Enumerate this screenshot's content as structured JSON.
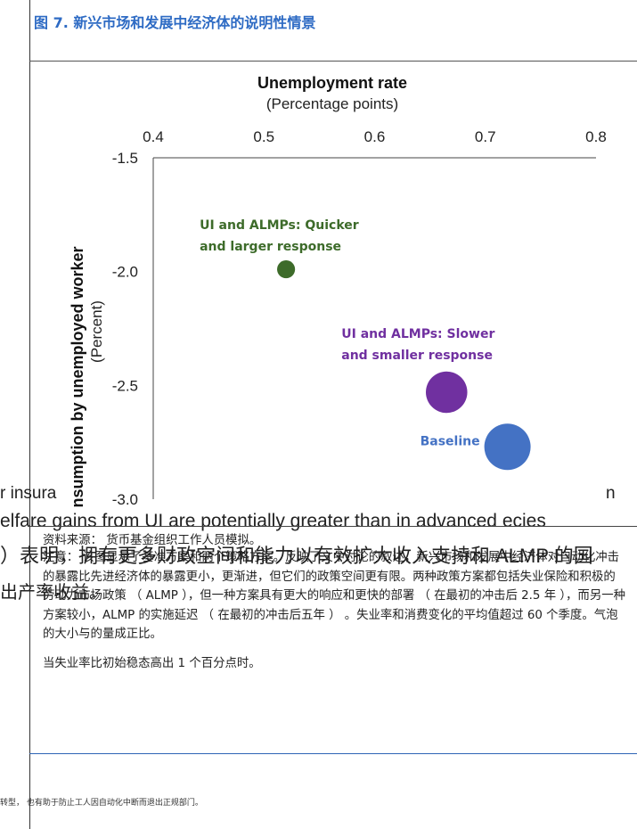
{
  "figure": {
    "title": "图 7. 新兴市场和发展中经济体的说明性情景"
  },
  "chart_data": {
    "type": "scatter",
    "title": "Unemployment rate",
    "subtitle": "(Percentage points)",
    "xlabel": "Unemployment rate",
    "ylabel": "Consumption by unemployed worker",
    "ylabel_sub": "(Percent)",
    "xlim": [
      0.4,
      0.8
    ],
    "ylim": [
      -3.0,
      -1.5
    ],
    "x_ticks": [
      "0.4",
      "0.5",
      "0.6",
      "0.7",
      "0.8"
    ],
    "y_ticks": [
      "-1.5",
      "-2.0",
      "-2.5",
      "-3.0"
    ],
    "x_axis_position": "top",
    "grid": false,
    "points": [
      {
        "label_line1": "UI and ALMPs: Quicker",
        "label_line2": "and larger response",
        "x": 0.52,
        "y": -1.99,
        "size": 0.15,
        "color": "#3d6b2a"
      },
      {
        "label_line1": "UI and ALMPs: Slower",
        "label_line2": "and smaller response",
        "x": 0.665,
        "y": -2.53,
        "size": 0.8,
        "color": "#7030a0"
      },
      {
        "label_line1": "Baseline",
        "label_line2": "",
        "x": 0.72,
        "y": -2.77,
        "size": 1.0,
        "color": "#4472c4"
      }
    ]
  },
  "bleed": {
    "line1": "r insura",
    "line1b": "n",
    "line2": "elfare gains from UI are potentially greater than in advanced ecies",
    "line3": "）表明，拥有更多财政空间和能力以有效扩大收入支持和 ALMP 的国",
    "line4": "出产率收益。"
  },
  "notes": {
    "source": "资料来源： 货币基金组织工作人员模拟。",
    "body": "注意： 该图显示了基准方案和两个策略方案。反映了文中讨论的叙述，新兴市场和发展中经济体对自动化冲击的暴露比先进经济体的暴露更小，更渐进，但它们的政策空间更有限。两种政策方案都包括失业保险和积极的劳动力市场政策 （ ALMP ），但一种方案具有更大的响应和更快的部署 （ 在最初的冲击后 2.5 年 ），而另一种方案较小，ALMP 的实施延迟 （ 在最初的冲击后五年 ） 。失业率和消费变化的平均值超过 60 个季度。气泡的大小与的量成正比。",
    "footer": "当失业率比初始稳态高出 1 个百分点时。"
  },
  "footnote": "转型， 也有助于防止工人因自动化中断而退出正规部门。"
}
